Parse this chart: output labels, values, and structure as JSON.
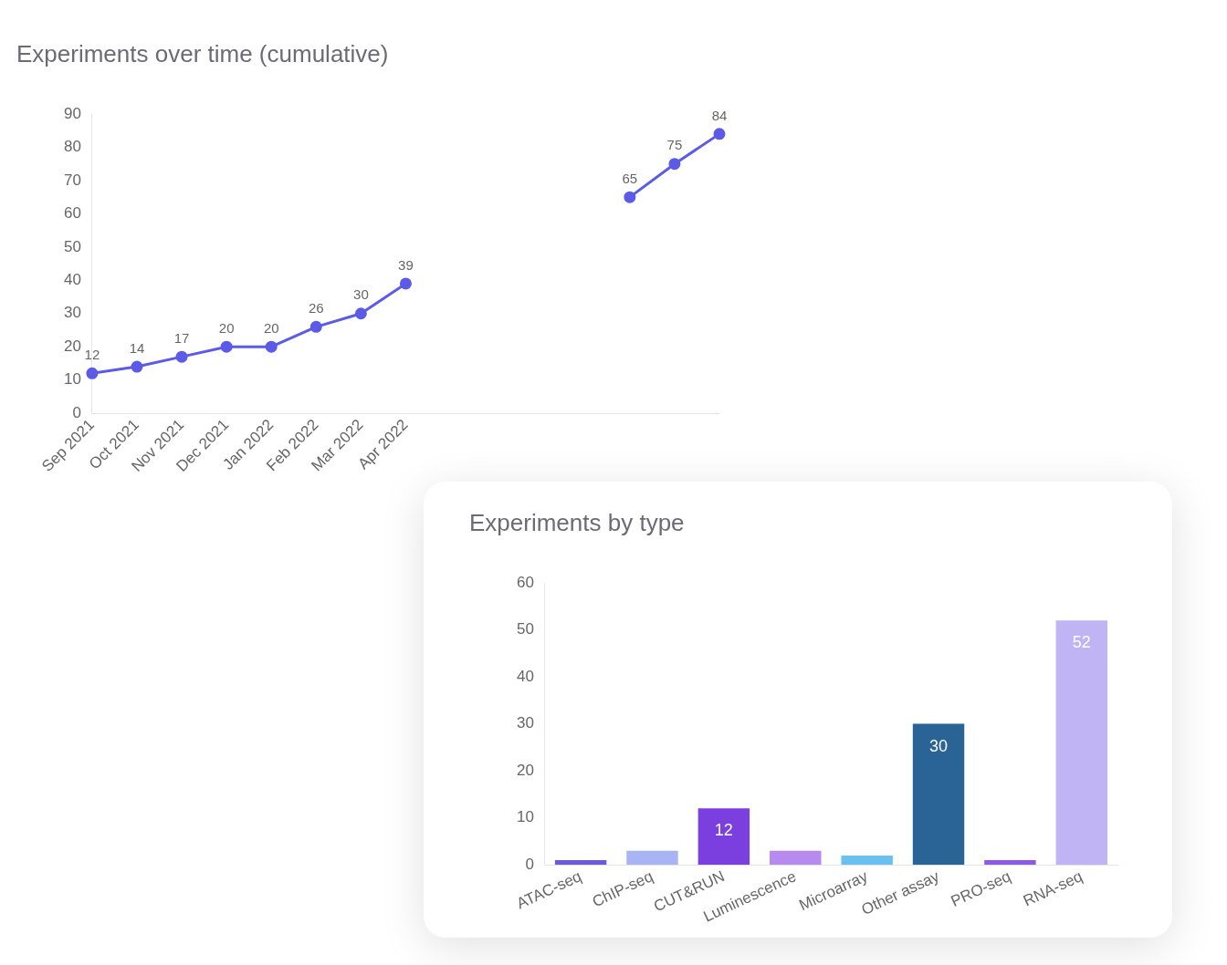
{
  "chart_data": [
    {
      "type": "line",
      "title": "Experiments over time (cumulative)",
      "categories": [
        "Sep 2021",
        "Oct 2021",
        "Nov 2021",
        "Dec 2021",
        "Jan 2022",
        "Feb 2022",
        "Mar 2022",
        "Apr 2022",
        null,
        null,
        null,
        null,
        null,
        null,
        null
      ],
      "series": [
        {
          "color": "#5b5be8",
          "values": [
            12,
            14,
            17,
            20,
            20,
            26,
            30,
            39,
            null,
            null,
            null,
            null,
            65,
            75,
            84
          ]
        }
      ],
      "ylim": [
        0,
        90
      ],
      "yticks": [
        0,
        10,
        20,
        30,
        40,
        50,
        60,
        70,
        80,
        90
      ],
      "grid": false,
      "legend": false,
      "marker": "circle",
      "line_style": "solid",
      "data_labels": true
    },
    {
      "type": "bar",
      "title": "Experiments by type",
      "categories": [
        "ATAC-seq",
        "ChIP-seq",
        "CUT&RUN",
        "Luminescence",
        "Microarray",
        "Other assay",
        "PRO-seq",
        "RNA-seq"
      ],
      "values": [
        1,
        3,
        12,
        3,
        2,
        30,
        1,
        52
      ],
      "colors": [
        "#6a5ae0",
        "#a9b4f5",
        "#7b3fe0",
        "#b78af0",
        "#6cc0f0",
        "#2a6496",
        "#8d5ae8",
        "#c0b4f5"
      ],
      "value_labels": [
        null,
        null,
        "12",
        null,
        null,
        "30",
        null,
        "52"
      ],
      "ylim": [
        0,
        60
      ],
      "yticks": [
        0,
        10,
        20,
        30,
        40,
        50,
        60
      ],
      "grid": false,
      "legend": false
    }
  ]
}
